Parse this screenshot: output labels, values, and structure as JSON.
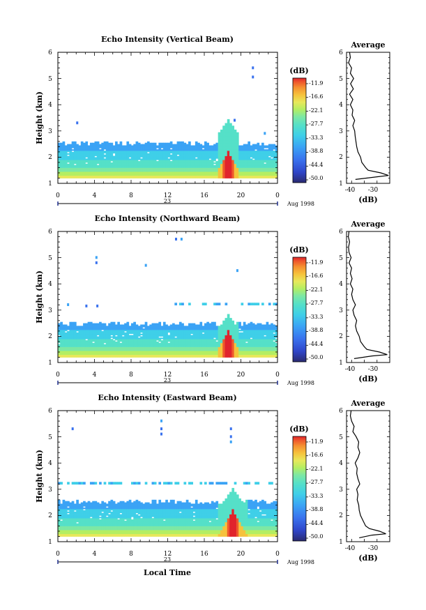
{
  "chart_data": [
    {
      "type": "heatmap",
      "title": "Echo Intensity (Vertical Beam)",
      "ylabel": "Height (km)",
      "xlabel": "",
      "x_ticks": [
        "0",
        "4",
        "8",
        "12",
        "16",
        "20",
        "0"
      ],
      "y_ticks": [
        "1",
        "2",
        "3",
        "4",
        "5",
        "6"
      ],
      "xlim": [
        0,
        24
      ],
      "ylim": [
        1,
        6
      ],
      "date_day": "23",
      "date_month": "Aug 1998",
      "colorbar": {
        "unit": "(dB)",
        "levels": [
          "-11.9",
          "-16.6",
          "-22.1",
          "-27.7",
          "-33.3",
          "-38.8",
          "-44.4",
          "-50.0"
        ]
      },
      "layer_top_km": 2.5,
      "features": {
        "main_layer": {
          "x_range": [
            0,
            24
          ],
          "top_km": 2.5
        },
        "rain_event": {
          "x_range": [
            17.5,
            19.5
          ],
          "peak_height_km": 3.4
        },
        "scattered_echoes": [
          {
            "t": 2,
            "h": 3.3
          },
          {
            "t": 19.2,
            "h": 3.4
          },
          {
            "t": 21.2,
            "h": 5.4
          },
          {
            "t": 21.2,
            "h": 5.05
          },
          {
            "t": 22.5,
            "h": 2.9
          }
        ]
      },
      "profile": {
        "title": "Average",
        "xlabel": "(dB)",
        "x_ticks": [
          "-40",
          "-30"
        ],
        "xlim": [
          -42,
          -25
        ],
        "heights": [
          1.15,
          1.25,
          1.3,
          1.4,
          1.5,
          1.6,
          1.8,
          2.0,
          2.2,
          2.4,
          2.6,
          2.8,
          3.0,
          3.2,
          3.4,
          3.6,
          3.8,
          4.0,
          4.2,
          4.4,
          4.6,
          4.8,
          5.0,
          5.2,
          5.4,
          5.6,
          5.8,
          6.0
        ],
        "values": [
          -38.5,
          -30,
          -25.5,
          -28.5,
          -33.5,
          -34.5,
          -36,
          -36.5,
          -37.5,
          -38,
          -38.3,
          -38.6,
          -38.8,
          -39.5,
          -38.8,
          -39.8,
          -39.5,
          -40.5,
          -39.5,
          -40.8,
          -39.3,
          -40.4,
          -39.2,
          -40.5,
          -40,
          -41.2,
          -40.5,
          -40.8
        ]
      }
    },
    {
      "type": "heatmap",
      "title": "Echo Intensity (Northward Beam)",
      "ylabel": "Height (km)",
      "xlabel": "",
      "x_ticks": [
        "0",
        "4",
        "8",
        "12",
        "16",
        "20",
        "0"
      ],
      "y_ticks": [
        "1",
        "2",
        "3",
        "4",
        "5",
        "6"
      ],
      "xlim": [
        0,
        24
      ],
      "ylim": [
        1,
        6
      ],
      "date_day": "23",
      "date_month": "Aug 1998",
      "colorbar": {
        "unit": "(dB)",
        "levels": [
          "-11.9",
          "-16.6",
          "-22.1",
          "-27.7",
          "-33.3",
          "-38.8",
          "-44.4",
          "-50.0"
        ]
      },
      "layer_top_km": 2.45,
      "features": {
        "main_layer": {
          "x_range": [
            0,
            24
          ],
          "top_km": 2.45
        },
        "upper_layer": {
          "x_range": [
            12.5,
            23.8
          ],
          "height_km": 3.2
        },
        "rain_event": {
          "x_range": [
            17.5,
            19.5
          ],
          "peak_height_km": 2.8
        },
        "scattered_echoes": [
          {
            "t": 4.1,
            "h": 5.0
          },
          {
            "t": 4.1,
            "h": 4.8
          },
          {
            "t": 9.5,
            "h": 4.7
          },
          {
            "t": 12.8,
            "h": 5.7
          },
          {
            "t": 13.4,
            "h": 5.7
          },
          {
            "t": 19.5,
            "h": 4.5
          },
          {
            "t": 1,
            "h": 3.2
          },
          {
            "t": 3,
            "h": 3.15
          },
          {
            "t": 4.2,
            "h": 3.15
          }
        ]
      },
      "profile": {
        "title": "Average",
        "xlabel": "(dB)",
        "x_ticks": [
          "-40",
          "-30"
        ],
        "xlim": [
          -42,
          -25
        ],
        "heights": [
          1.15,
          1.25,
          1.3,
          1.4,
          1.5,
          1.6,
          1.8,
          2.0,
          2.2,
          2.4,
          2.6,
          2.8,
          3.0,
          3.2,
          3.4,
          3.6,
          3.8,
          4.0,
          4.2,
          4.4,
          4.6,
          4.8,
          5.0,
          5.2,
          5.4,
          5.6,
          5.8,
          6.0
        ],
        "values": [
          -39,
          -32,
          -26,
          -29,
          -34,
          -35,
          -36.5,
          -37,
          -38,
          -38.5,
          -38,
          -39,
          -39.5,
          -38.5,
          -39.5,
          -40,
          -39.5,
          -40.5,
          -39.8,
          -40.5,
          -40,
          -41,
          -40.2,
          -41,
          -41.2,
          -40.8,
          -41.3,
          -41
        ]
      }
    },
    {
      "type": "heatmap",
      "title": "Echo Intensity (Eastward Beam)",
      "ylabel": "Height (km)",
      "xlabel": "Local Time",
      "x_ticks": [
        "0",
        "4",
        "8",
        "12",
        "16",
        "20",
        "0"
      ],
      "y_ticks": [
        "1",
        "2",
        "3",
        "4",
        "5",
        "6"
      ],
      "xlim": [
        0,
        24
      ],
      "ylim": [
        1,
        6
      ],
      "date_day": "23",
      "date_month": "Aug 1998",
      "colorbar": {
        "unit": "(dB)",
        "levels": [
          "-11.9",
          "-16.6",
          "-22.1",
          "-27.7",
          "-33.3",
          "-38.8",
          "-44.4",
          "-50.0"
        ]
      },
      "layer_top_km": 2.5,
      "features": {
        "main_layer": {
          "x_range": [
            0,
            24
          ],
          "top_km": 2.5
        },
        "upper_layer": {
          "x_range": [
            0,
            24
          ],
          "height_km": 3.2
        },
        "rain_event": {
          "x_range": [
            17.5,
            20.5
          ],
          "peak_height_km": 3.0
        },
        "scattered_echoes": [
          {
            "t": 1.5,
            "h": 5.3
          },
          {
            "t": 11.2,
            "h": 5.6
          },
          {
            "t": 11.2,
            "h": 5.3
          },
          {
            "t": 11.2,
            "h": 5.1
          },
          {
            "t": 18.8,
            "h": 5.3
          },
          {
            "t": 18.8,
            "h": 5.0
          },
          {
            "t": 18.8,
            "h": 4.8
          }
        ]
      },
      "profile": {
        "title": "Average",
        "xlabel": "(dB)",
        "x_ticks": [
          "-40",
          "-30"
        ],
        "xlim": [
          -42,
          -25
        ],
        "heights": [
          1.15,
          1.25,
          1.3,
          1.4,
          1.5,
          1.6,
          1.8,
          2.0,
          2.2,
          2.4,
          2.6,
          2.8,
          3.0,
          3.2,
          3.4,
          3.6,
          3.8,
          4.0,
          4.2,
          4.4,
          4.6,
          4.8,
          5.0,
          5.2,
          5.4,
          5.6,
          5.8,
          6.0
        ],
        "values": [
          -37,
          -32,
          -26.5,
          -29,
          -33,
          -34.5,
          -35.5,
          -36.5,
          -37,
          -37.2,
          -37.8,
          -37.5,
          -38,
          -36.8,
          -37.5,
          -38,
          -37.8,
          -38.6,
          -37.5,
          -36.8,
          -37.5,
          -37.2,
          -38.2,
          -39.5,
          -39,
          -40,
          -40.5,
          -40.2
        ]
      }
    }
  ],
  "colors": {
    "palette": [
      "#2a2a70",
      "#2f45c8",
      "#3a72ee",
      "#3ba3f5",
      "#3fcfe8",
      "#55e0c8",
      "#7de8a4",
      "#b4ee62",
      "#e8e85a",
      "#f6c23c",
      "#f59030",
      "#ef5a2c",
      "#e0242c"
    ]
  }
}
